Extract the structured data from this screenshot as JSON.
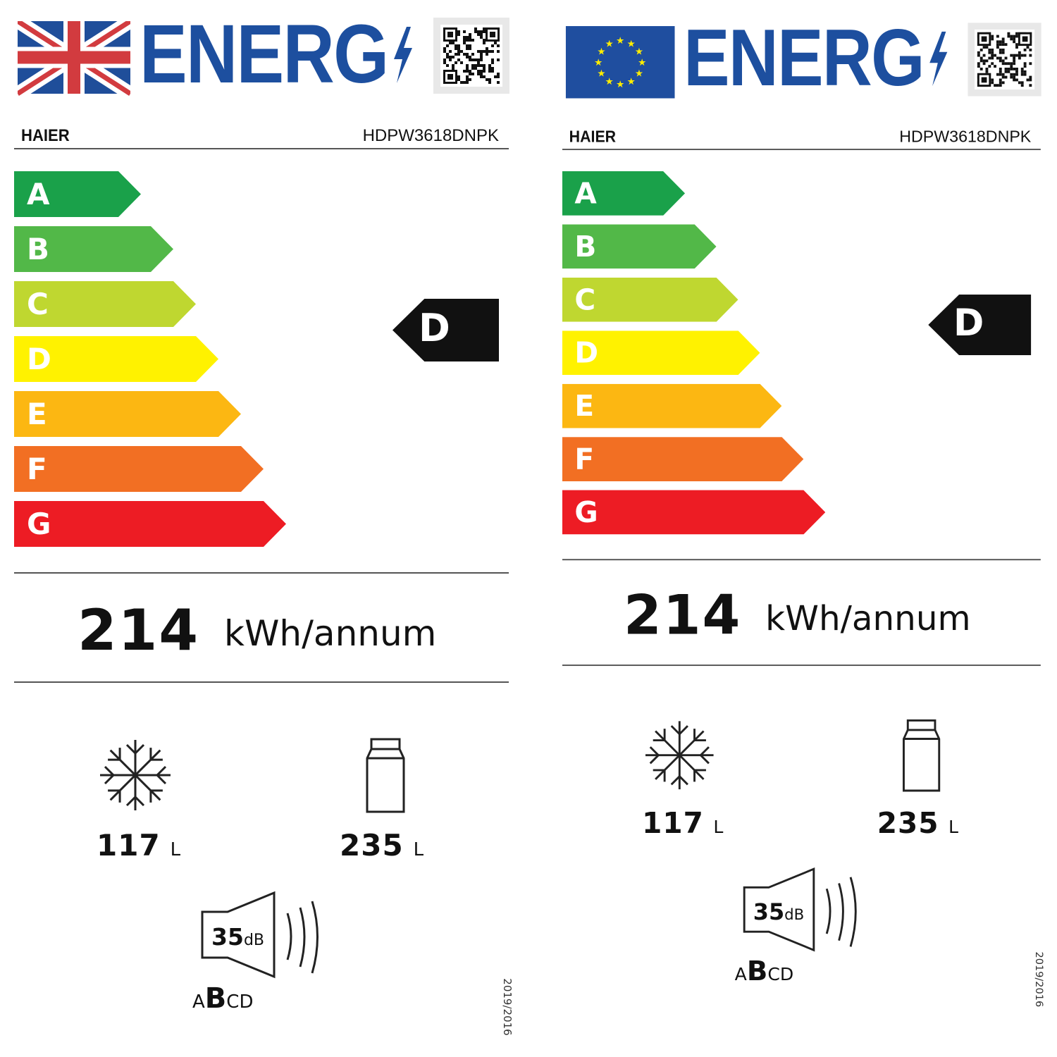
{
  "labels": [
    {
      "flag": "uk-flag",
      "logo_text": "ENERG",
      "brand": "HAIER",
      "model": "HDPW3618DNPK",
      "scale": [
        "A",
        "B",
        "C",
        "D",
        "E",
        "F",
        "G"
      ],
      "rating": "D",
      "energy_value": "214",
      "energy_unit": "kWh/annum",
      "freezer_volume": "117",
      "fridge_volume": "235",
      "volume_unit": "L",
      "noise_value": "35",
      "noise_unit": "dB",
      "noise_classes": [
        "A",
        "B",
        "C",
        "D"
      ],
      "noise_class": "B",
      "regulation": "2019/2016"
    },
    {
      "flag": "eu-flag",
      "logo_text": "ENERG",
      "brand": "HAIER",
      "model": "HDPW3618DNPK",
      "scale": [
        "A",
        "B",
        "C",
        "D",
        "E",
        "F",
        "G"
      ],
      "rating": "D",
      "energy_value": "214",
      "energy_unit": "kWh/annum",
      "freezer_volume": "117",
      "fridge_volume": "235",
      "volume_unit": "L",
      "noise_value": "35",
      "noise_unit": "dB",
      "noise_classes": [
        "A",
        "B",
        "C",
        "D"
      ],
      "noise_class": "B",
      "regulation": "2019/2016"
    }
  ],
  "colors": {
    "logo_blue": "#1d4f9f",
    "scale": [
      "#1aa14a",
      "#52b848",
      "#bfd730",
      "#fff200",
      "#fcb712",
      "#f26f23",
      "#ed1c24"
    ],
    "rating_arrow": "#111111"
  }
}
